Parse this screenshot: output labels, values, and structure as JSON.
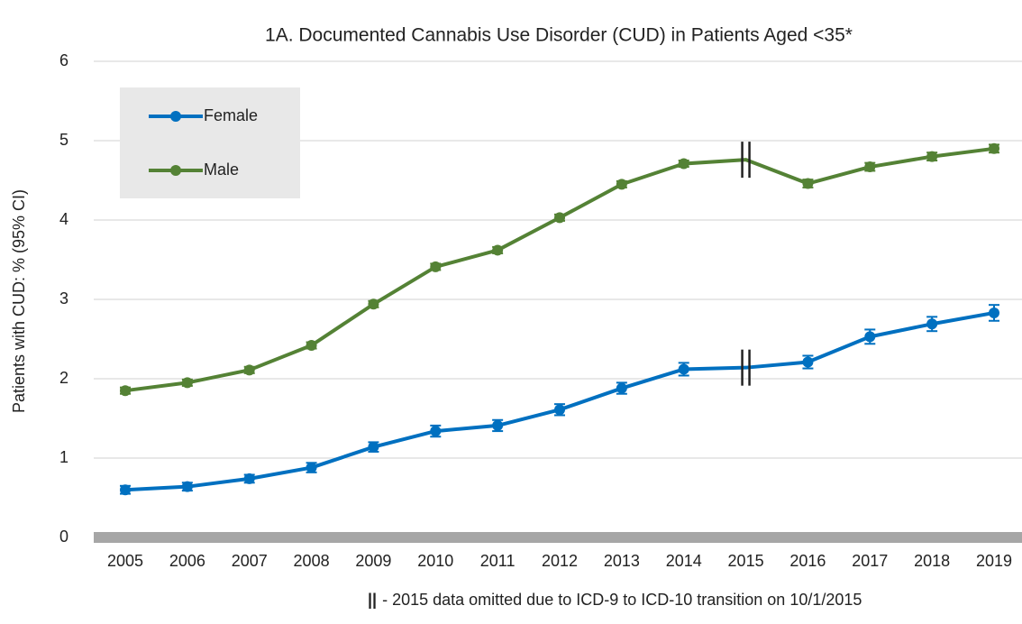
{
  "chart_data": {
    "type": "line",
    "title": "1A. Documented Cannabis Use Disorder (CUD) in Patients Aged <35*",
    "y_label": "Patients with CUD: % (95% CI)",
    "categories": [
      "2005",
      "2006",
      "2007",
      "2008",
      "2009",
      "2010",
      "2011",
      "2012",
      "2013",
      "2014",
      "2015",
      "2016",
      "2017",
      "2018",
      "2019"
    ],
    "series": [
      {
        "name": "Female",
        "color": "#0070c0",
        "values": [
          0.6,
          0.64,
          0.74,
          0.88,
          1.14,
          1.34,
          1.41,
          1.61,
          1.88,
          2.12,
          2.14,
          2.21,
          2.53,
          2.69,
          2.83
        ],
        "errors": [
          0.05,
          0.05,
          0.05,
          0.06,
          0.06,
          0.07,
          0.07,
          0.07,
          0.07,
          0.08,
          null,
          0.08,
          0.09,
          0.09,
          0.1
        ]
      },
      {
        "name": "Male",
        "color": "#548235",
        "values": [
          1.85,
          1.95,
          2.11,
          2.42,
          2.94,
          3.41,
          3.62,
          4.03,
          4.45,
          4.71,
          4.76,
          4.46,
          4.67,
          4.8,
          4.9
        ],
        "errors": [
          0.04,
          0.04,
          0.04,
          0.04,
          0.04,
          0.04,
          0.04,
          0.04,
          0.04,
          0.04,
          null,
          0.05,
          0.05,
          0.05,
          0.05
        ]
      }
    ],
    "break_category": "2015",
    "footnote_symbol": "||",
    "footnote": "- 2015 data omitted due to ICD-9 to ICD-10 transition on 10/1/2015",
    "ylim": [
      0,
      6
    ],
    "yticks": [
      0,
      1,
      2,
      3,
      4,
      5,
      6
    ],
    "grid": true,
    "legend": "upper left"
  }
}
